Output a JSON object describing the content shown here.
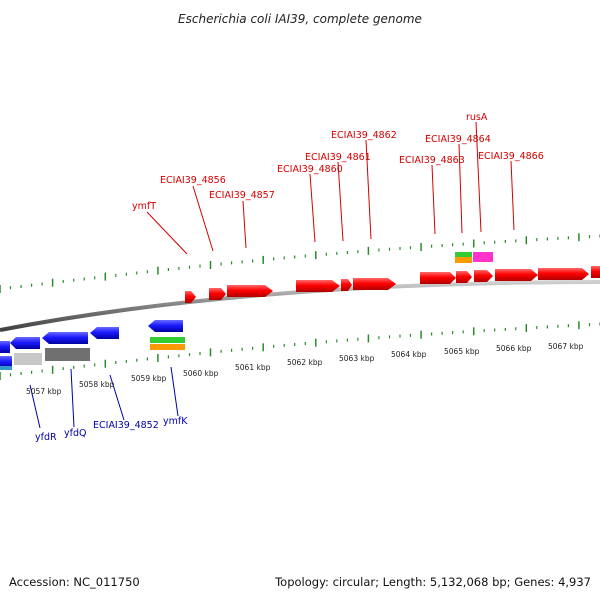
{
  "title": "Escherichia coli IAI39, complete genome",
  "footer": {
    "accession": "Accession: NC_011750",
    "summary": "Topology: circular; Length: 5,132,068 bp; Genes: 4,937"
  },
  "scale_labels": [
    "5057 kbp",
    "5058 kbp",
    "5059 kbp",
    "5060 kbp",
    "5061 kbp",
    "5062 kbp",
    "5063 kbp",
    "5064 kbp",
    "5065 kbp",
    "5066 kbp",
    "5067 kbp"
  ],
  "top_labels": [
    "ymfT",
    "ECIAI39_4856",
    "ECIAI39_4857",
    "ECIAI39_4860",
    "ECIAI39_4861",
    "ECIAI39_4862",
    "ECIAI39_4863",
    "ECIAI39_4864",
    "rusA",
    "ECIAI39_4866"
  ],
  "bottom_labels": [
    "yfdR",
    "yfdQ",
    "ECIAI39_4852",
    "ymfK"
  ],
  "colors": {
    "forward_gene": "#ff0000",
    "reverse_gene": "#1a1aff",
    "pseudo_light": "#c8c8c8",
    "pseudo_dark": "#707070",
    "green": "#33cc33",
    "orange": "#ff9900",
    "magenta": "#ff33cc",
    "backbone": "#808080",
    "ticks": "#2a8a2a",
    "top_label_color": "#d40000",
    "bottom_label_color": "#0000aa"
  }
}
